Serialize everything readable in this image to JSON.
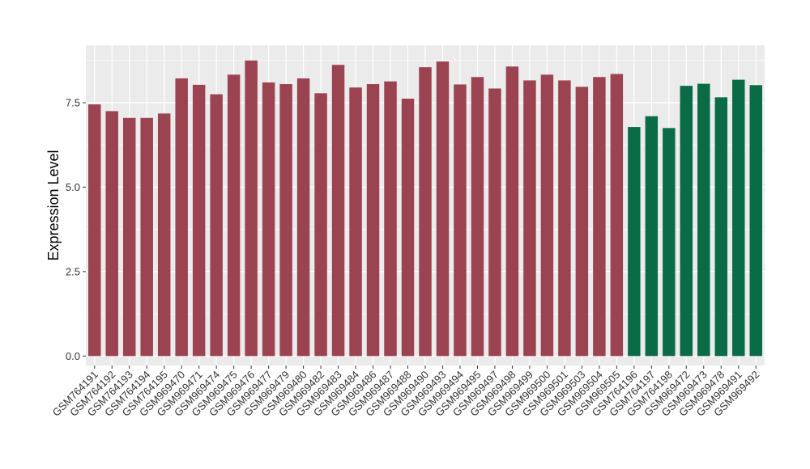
{
  "chart_data": {
    "type": "bar",
    "title": "",
    "xlabel": "",
    "ylabel": "Expression Level",
    "ylim": [
      -0.28,
      9.2
    ],
    "yticks": [
      0.0,
      2.5,
      5.0,
      7.5
    ],
    "ytick_labels": [
      "0.0",
      "2.5",
      "5.0",
      "7.5"
    ],
    "grid": true,
    "legend": "none",
    "categories": [
      "GSM764191",
      "GSM764192",
      "GSM764193",
      "GSM764194",
      "GSM764195",
      "GSM969470",
      "GSM969471",
      "GSM969474",
      "GSM969475",
      "GSM969476",
      "GSM969477",
      "GSM969479",
      "GSM969480",
      "GSM969482",
      "GSM969483",
      "GSM969484",
      "GSM969486",
      "GSM969487",
      "GSM969488",
      "GSM969490",
      "GSM969493",
      "GSM969494",
      "GSM969495",
      "GSM969497",
      "GSM969498",
      "GSM969499",
      "GSM969500",
      "GSM969501",
      "GSM969503",
      "GSM969504",
      "GSM969505",
      "GSM764196",
      "GSM764197",
      "GSM764198",
      "GSM969472",
      "GSM969473",
      "GSM969478",
      "GSM969491",
      "GSM969492"
    ],
    "values": [
      7.45,
      7.25,
      7.05,
      7.05,
      7.18,
      8.22,
      8.03,
      7.75,
      8.33,
      8.75,
      8.1,
      8.05,
      8.22,
      7.78,
      8.62,
      7.95,
      8.05,
      8.13,
      7.62,
      8.55,
      8.72,
      8.04,
      8.26,
      7.92,
      8.57,
      8.16,
      8.33,
      8.16,
      7.97,
      8.26,
      8.35,
      6.78,
      7.1,
      6.75,
      8.0,
      8.06,
      7.66,
      8.18,
      8.02
    ],
    "bar_colors": [
      "#9b4350",
      "#9b4350",
      "#9b4350",
      "#9b4350",
      "#9b4350",
      "#9b4350",
      "#9b4350",
      "#9b4350",
      "#9b4350",
      "#9b4350",
      "#9b4350",
      "#9b4350",
      "#9b4350",
      "#9b4350",
      "#9b4350",
      "#9b4350",
      "#9b4350",
      "#9b4350",
      "#9b4350",
      "#9b4350",
      "#9b4350",
      "#9b4350",
      "#9b4350",
      "#9b4350",
      "#9b4350",
      "#9b4350",
      "#9b4350",
      "#9b4350",
      "#9b4350",
      "#9b4350",
      "#9b4350",
      "#0a6b47",
      "#0a6b47",
      "#0a6b47",
      "#0a6b47",
      "#0a6b47",
      "#0a6b47",
      "#0a6b47",
      "#0a6b47"
    ],
    "colors": {
      "group_a": "#9b4350",
      "group_b": "#0a6b47",
      "panel_background": "#ebebeb",
      "grid": "#ffffff"
    }
  }
}
